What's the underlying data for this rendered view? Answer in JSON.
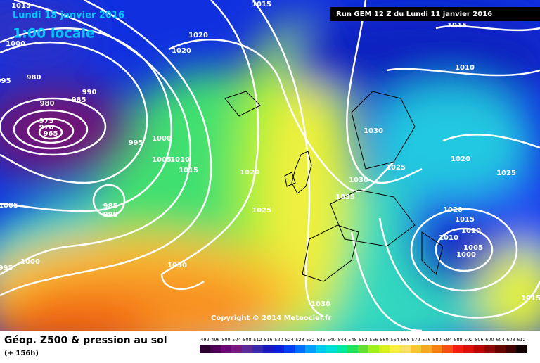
{
  "header": {
    "date": "Lundi 18 janvier 2016",
    "time": "1:00 locale",
    "run": "Run GEM 12 Z du Lundi 11 janvier 2016"
  },
  "copyright": "Copyright © 2014 Meteociel.fr",
  "footer": {
    "title": "Géop. Z500 & pression au sol",
    "lead": "(+ 156h)"
  },
  "legend": {
    "values": [
      492,
      496,
      500,
      504,
      508,
      512,
      516,
      520,
      524,
      528,
      532,
      536,
      540,
      544,
      548,
      552,
      556,
      560,
      564,
      568,
      572,
      576,
      580,
      584,
      588,
      592,
      596,
      600,
      604,
      608,
      612
    ],
    "colors": [
      "#2a0030",
      "#4b0052",
      "#6a0a6e",
      "#7a1a80",
      "#5a2a9a",
      "#3a2ab0",
      "#1a1ac0",
      "#0a20d8",
      "#0040f0",
      "#0070ff",
      "#00a0ff",
      "#00c8f0",
      "#00e0d0",
      "#00e8a0",
      "#20e060",
      "#60e030",
      "#a0f020",
      "#d8f020",
      "#f8f040",
      "#f8e060",
      "#f8c830",
      "#f8a820",
      "#f88010",
      "#f85010",
      "#f02010",
      "#d81010",
      "#b80808",
      "#900808",
      "#680404",
      "#400202",
      "#100000"
    ]
  },
  "isobars": [
    "1015",
    "1000",
    "995",
    "980",
    "990",
    "980",
    "985",
    "975",
    "970",
    "965",
    "1015",
    "1020",
    "1020",
    "995",
    "1000",
    "1005",
    "1010",
    "1015",
    "1020",
    "985",
    "990",
    "1005",
    "1000",
    "995",
    "1030",
    "1025",
    "1030",
    "1025",
    "1030",
    "1035",
    "1015",
    "1010",
    "1020",
    "1020",
    "1015",
    "1010",
    "1010",
    "1005",
    "1000",
    "1025",
    "1030",
    "1015"
  ]
}
